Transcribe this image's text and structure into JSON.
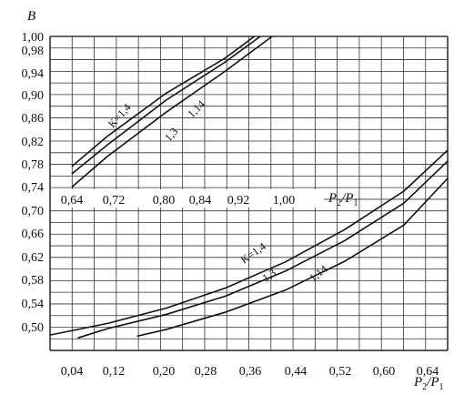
{
  "chart_data": {
    "type": "line",
    "ylabel": "B",
    "xlabel_main": "P",
    "xlabel_sub2": "2",
    "xlabel_sub1": "1",
    "y_ticks": [
      "1,00",
      "0,98",
      "0,94",
      "0,90",
      "0,86",
      "0,82",
      "0,78",
      "0,74",
      "0,70",
      "0,66",
      "0,62",
      "0,58",
      "0,54",
      "0,50"
    ],
    "x_ticks_lower": [
      "0,04",
      "0,12",
      "0,20",
      "0,28",
      "0,36",
      "0,44",
      "0,52",
      "0,60",
      "0,64"
    ],
    "x_ticks_upper": [
      "0,64",
      "0,72",
      "0,80",
      "0,84",
      "0,92",
      "1,00"
    ],
    "grid": true,
    "upper_panel": {
      "xlim": [
        0.64,
        1.0
      ],
      "series": [
        {
          "name": "K=1,4",
          "x": [
            0.64,
            0.7,
            0.8,
            0.9,
            0.95
          ],
          "y": [
            0.778,
            0.83,
            0.905,
            0.966,
            1.0
          ]
        },
        {
          "name": "1,3",
          "x": [
            0.64,
            0.7,
            0.8,
            0.9,
            0.96
          ],
          "y": [
            0.765,
            0.815,
            0.893,
            0.959,
            1.0
          ]
        },
        {
          "name": "1,14",
          "x": [
            0.64,
            0.7,
            0.8,
            0.9,
            0.98
          ],
          "y": [
            0.742,
            0.795,
            0.872,
            0.943,
            1.0
          ]
        }
      ]
    },
    "lower_panel": {
      "xlim": [
        0.0,
        0.64
      ],
      "series": [
        {
          "name": "K=1,4",
          "x": [
            0.0,
            0.1,
            0.2,
            0.3,
            0.4,
            0.5,
            0.6,
            0.68
          ],
          "y": [
            0.485,
            0.505,
            0.532,
            0.567,
            0.612,
            0.668,
            0.735,
            0.806
          ]
        },
        {
          "name": "1,3",
          "x": [
            0.05,
            0.1,
            0.2,
            0.3,
            0.4,
            0.5,
            0.6,
            0.68
          ],
          "y": [
            0.48,
            0.496,
            0.521,
            0.553,
            0.596,
            0.649,
            0.714,
            0.787
          ]
        },
        {
          "name": "1,14",
          "x": [
            0.15,
            0.2,
            0.3,
            0.4,
            0.5,
            0.6,
            0.68
          ],
          "y": [
            0.483,
            0.495,
            0.525,
            0.563,
            0.613,
            0.676,
            0.757
          ]
        }
      ]
    }
  }
}
